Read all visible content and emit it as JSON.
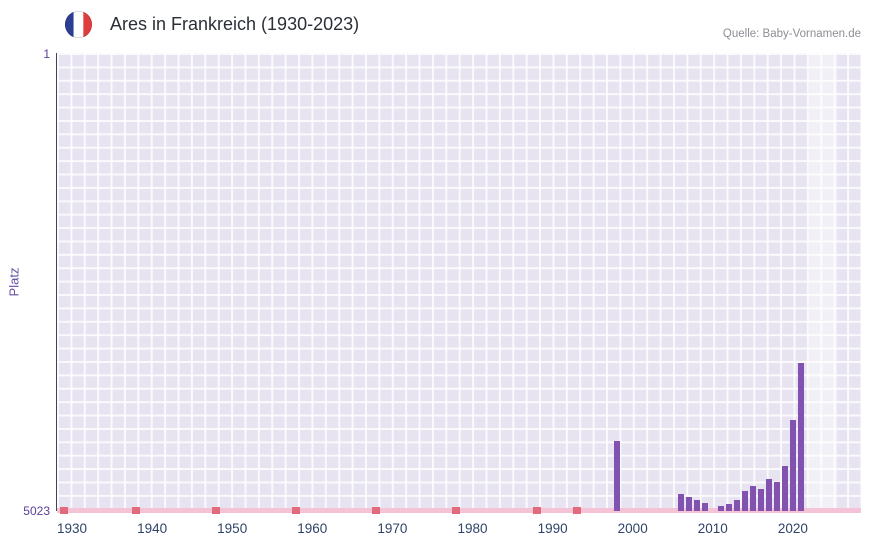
{
  "header": {
    "title": "Ares in Frankreich (1930-2023)",
    "source": "Quelle: Baby-Vornamen.de",
    "flag_icon": "france-flag-icon"
  },
  "axes": {
    "y_label": "Platz",
    "y_top_tick": "1",
    "y_bottom_tick": "5023",
    "x_ticks": [
      "1930",
      "1940",
      "1950",
      "1960",
      "1970",
      "1980",
      "1990",
      "2000",
      "2010",
      "2020"
    ]
  },
  "chart_data": {
    "type": "bar",
    "title": "Ares in Frankreich (1930-2023)",
    "xlabel": "",
    "ylabel": "Platz",
    "y_axis": {
      "min": 1,
      "max": 5023,
      "inverted": true,
      "top_tick": "1",
      "bottom_tick": "5023"
    },
    "x_tick_years": [
      1930,
      1940,
      1950,
      1960,
      1970,
      1980,
      1990,
      2000,
      2010,
      2020
    ],
    "bars": [
      {
        "year": 1998,
        "rank": 4250
      },
      {
        "year": 2006,
        "rank": 4840
      },
      {
        "year": 2007,
        "rank": 4870
      },
      {
        "year": 2008,
        "rank": 4900
      },
      {
        "year": 2009,
        "rank": 4940
      },
      {
        "year": 2011,
        "rank": 4970
      },
      {
        "year": 2012,
        "rank": 4950
      },
      {
        "year": 2013,
        "rank": 4900
      },
      {
        "year": 2014,
        "rank": 4800
      },
      {
        "year": 2015,
        "rank": 4750
      },
      {
        "year": 2016,
        "rank": 4780
      },
      {
        "year": 2017,
        "rank": 4670
      },
      {
        "year": 2018,
        "rank": 4700
      },
      {
        "year": 2019,
        "rank": 4530
      },
      {
        "year": 2020,
        "rank": 4030
      },
      {
        "year": 2021,
        "rank": 3400
      }
    ],
    "unranked_marker_years": [
      1929,
      1938,
      1948,
      1958,
      1968,
      1978,
      1988,
      1993
    ],
    "highlight_band_years": [
      2022,
      2025.5
    ],
    "legend": "none",
    "grid": "on",
    "colors": {
      "bar": "#8152b0",
      "plot_bg": "#e7e3f1",
      "grid": "#ffffff",
      "baseline": "#f4c3d6",
      "unranked_marker": "#e16a7c",
      "band": "rgba(255,255,255,0.45)",
      "x_tick_text": "#2f4468",
      "y_tick_text": "#5b3f99"
    }
  }
}
